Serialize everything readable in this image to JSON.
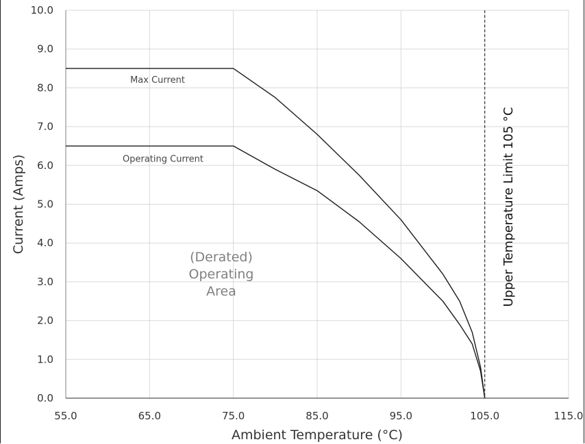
{
  "chart_data": {
    "type": "line",
    "title": "",
    "xlabel": "Ambient Temperature (°C)",
    "ylabel": "Current (Amps)",
    "xlim": [
      55,
      115
    ],
    "ylim": [
      0,
      10
    ],
    "x_ticks": [
      "55.0",
      "65.0",
      "75.0",
      "85.0",
      "95.0",
      "105.0",
      "115.0"
    ],
    "y_ticks": [
      "0.0",
      "1.0",
      "2.0",
      "3.0",
      "4.0",
      "5.0",
      "6.0",
      "7.0",
      "8.0",
      "9.0",
      "10.0"
    ],
    "grid": true,
    "series": [
      {
        "name": "Max Current",
        "points": [
          [
            55,
            8.5
          ],
          [
            75,
            8.5
          ],
          [
            80,
            7.75
          ],
          [
            85,
            6.8
          ],
          [
            90,
            5.75
          ],
          [
            95,
            4.6
          ],
          [
            100,
            3.2
          ],
          [
            102,
            2.5
          ],
          [
            103.5,
            1.7
          ],
          [
            104.5,
            0.8
          ],
          [
            105,
            0.0
          ]
        ]
      },
      {
        "name": "Operating Current",
        "points": [
          [
            55,
            6.5
          ],
          [
            75,
            6.5
          ],
          [
            80,
            5.9
          ],
          [
            85,
            5.35
          ],
          [
            90,
            4.55
          ],
          [
            95,
            3.6
          ],
          [
            100,
            2.5
          ],
          [
            102,
            1.9
          ],
          [
            103.5,
            1.4
          ],
          [
            104.5,
            0.7
          ],
          [
            105,
            0.0
          ]
        ]
      }
    ],
    "annotations": {
      "area_label": [
        "(Derated)",
        "Operating",
        "Area"
      ],
      "limit_line_x": 105,
      "limit_label": "Upper Temperature Limit 105 °C"
    },
    "colors": {
      "line": "#1a1a1a",
      "grid": "#d9d9d9",
      "axis_text": "#333333",
      "area_text": "#808080",
      "series_label_text": "#444444"
    }
  }
}
